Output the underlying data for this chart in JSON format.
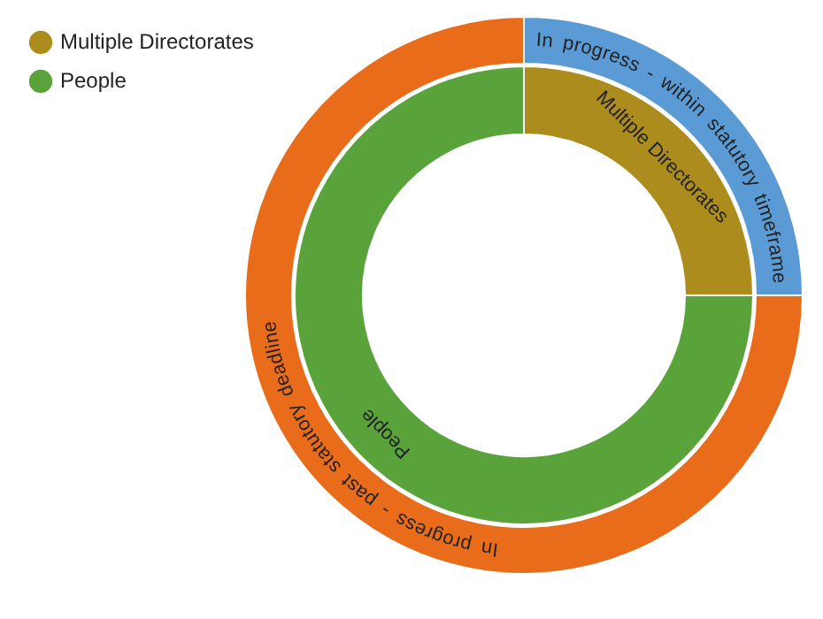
{
  "chart_data": [
    {
      "type": "donut",
      "categories": [
        "In progress - within statutory timeframe",
        "In progress - past statutory deadline"
      ],
      "values": [
        25,
        75
      ],
      "colors": [
        "#5b9bd5",
        "#e86c1a"
      ]
    },
    {
      "type": "donut",
      "legend": "top left",
      "categories": [
        "Multiple Directorates",
        "People"
      ],
      "values": [
        25,
        75
      ],
      "value_labels": [
        "Multiple Directorates",
        "People"
      ],
      "colors": [
        "#ad8c1e",
        "#5aa23a"
      ]
    }
  ]
}
